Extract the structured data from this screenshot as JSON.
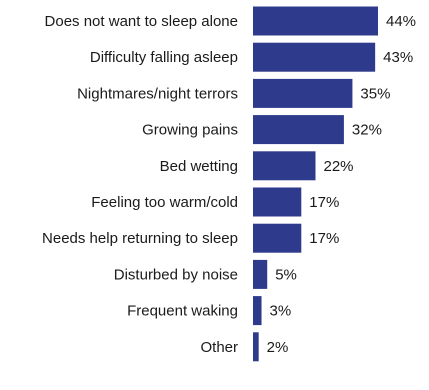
{
  "chart_data": {
    "type": "bar",
    "orientation": "horizontal",
    "title": "",
    "xlabel": "",
    "ylabel": "",
    "categories": [
      "Does not want to sleep alone",
      "Difficulty falling asleep",
      "Nightmares/night terrors",
      "Growing pains",
      "Bed wetting",
      "Feeling too warm/cold",
      "Needs help returning to sleep",
      "Disturbed by noise",
      "Frequent waking",
      "Other"
    ],
    "values": [
      44,
      43,
      35,
      32,
      22,
      17,
      17,
      5,
      3,
      2
    ],
    "value_labels": [
      "44%",
      "43%",
      "35%",
      "32%",
      "22%",
      "17%",
      "17%",
      "5%",
      "3%",
      "2%"
    ],
    "xlim": [
      0,
      44
    ],
    "grid": false,
    "legend": "none",
    "bar_color": "#2e3a8c"
  }
}
